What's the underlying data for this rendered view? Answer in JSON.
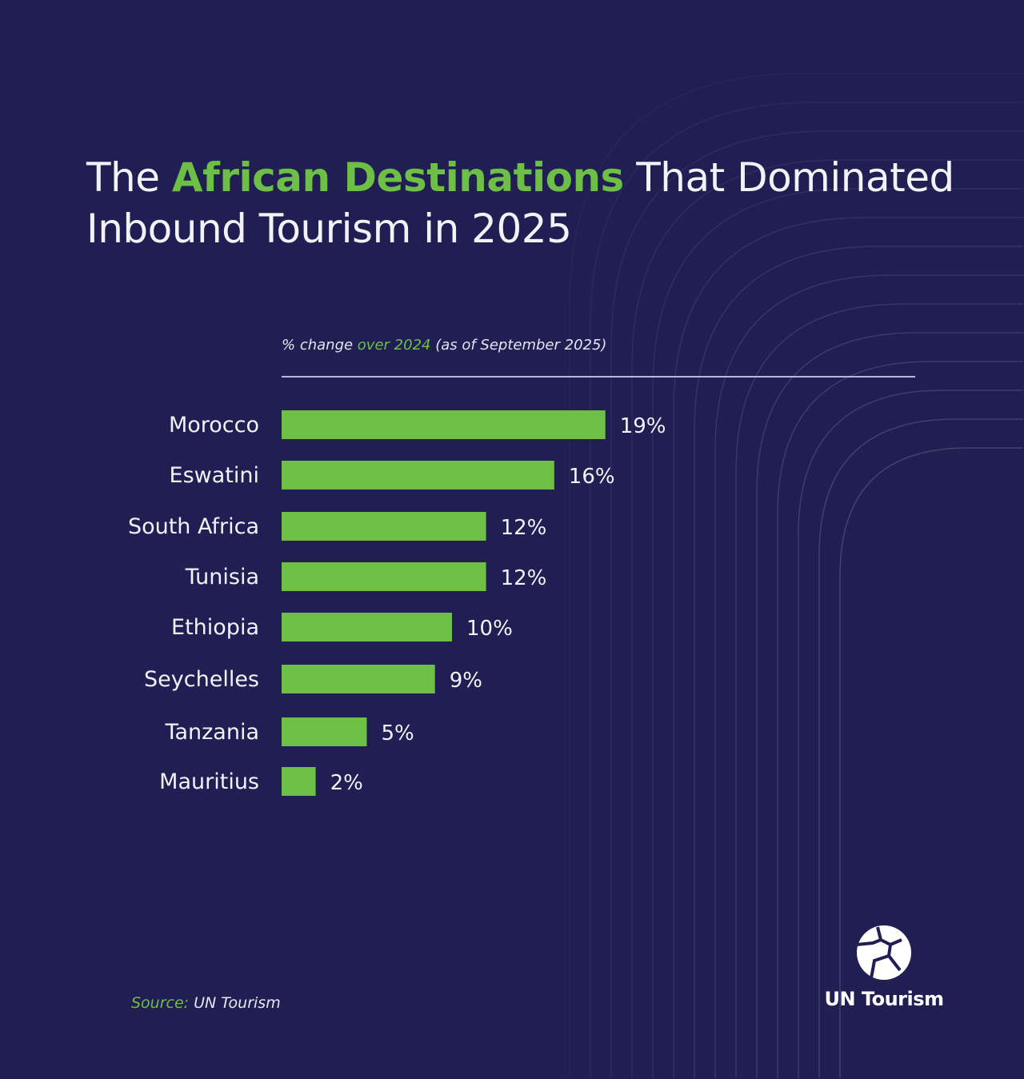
{
  "title": {
    "part1": "The ",
    "highlight": "African Destinations",
    "part2": " That Dominated",
    "line2": "Inbound Tourism in 2025"
  },
  "colors": {
    "background": "#201e52",
    "bar": "#6dbf46",
    "accent": "#6dbf46",
    "text": "#f2f2f7"
  },
  "chart_data": {
    "type": "bar",
    "orientation": "horizontal",
    "subtitle": {
      "part1": "% change ",
      "highlight": "over 2024",
      "part2": " (as of September 2025)"
    },
    "categories": [
      "Morocco",
      "Eswatini",
      "South Africa",
      "Tunisia",
      "Ethiopia",
      "Seychelles",
      "Tanzania",
      "Mauritius"
    ],
    "values": [
      19,
      16,
      12,
      12,
      10,
      9,
      5,
      2
    ],
    "data_labels": [
      "19%",
      "16%",
      "12%",
      "12%",
      "10%",
      "9%",
      "5%",
      "2%"
    ],
    "xlim": [
      0,
      37
    ],
    "grid": false
  },
  "footer": {
    "source_label": "Source:",
    "source_value": " UN Tourism",
    "logo_text": "UN Tourism"
  }
}
